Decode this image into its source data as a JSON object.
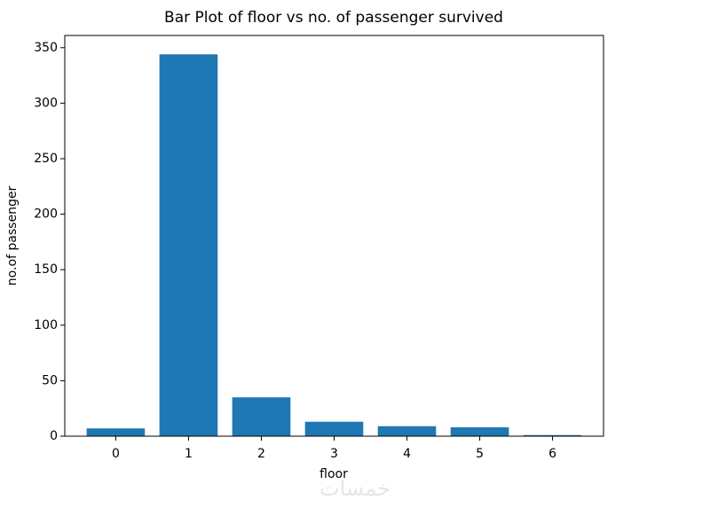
{
  "chart_data": {
    "type": "bar",
    "title": "Bar Plot of floor vs no. of passenger survived",
    "x_label": "floor",
    "y_label": "no.of passenger",
    "x": [
      0,
      1,
      2,
      3,
      4,
      5,
      6
    ],
    "values": [
      7,
      344,
      35,
      13,
      9,
      8,
      1
    ],
    "color": "#1f77b4",
    "xlim": [
      -0.7,
      6.7
    ],
    "xticks": [
      0,
      1,
      2,
      3,
      4,
      5,
      6
    ],
    "ylim": [
      0,
      361
    ],
    "yticks": [
      0,
      50,
      100,
      150,
      200,
      250,
      300,
      350
    ],
    "grid": false,
    "bar_width": 0.8
  },
  "watermark": "خمسات"
}
